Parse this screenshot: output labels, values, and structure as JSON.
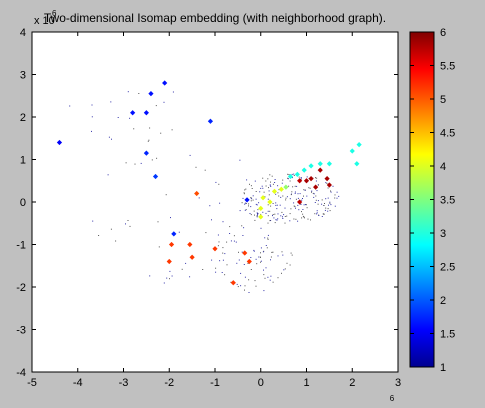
{
  "window": {
    "background": "#c0c0c0"
  },
  "chart_data": {
    "type": "scatter",
    "title": "Two-dimensional Isomap embedding (with neighborhood graph).",
    "x_multiplier_label": "6",
    "y_multiplier_label": "x 10",
    "y_multiplier_exp": "6",
    "xlim": [
      -5,
      3
    ],
    "ylim": [
      -4,
      4
    ],
    "x_ticks": [
      "-5",
      "-4",
      "-3",
      "-2",
      "-1",
      "0",
      "1",
      "2",
      "3"
    ],
    "y_ticks": [
      "4",
      "3",
      "2",
      "1",
      "0",
      "-1",
      "-2",
      "-3",
      "-4"
    ],
    "grid": false,
    "colormap": "jet",
    "colorbar": {
      "range": [
        1,
        6
      ],
      "tick_labels": [
        "6",
        "5.5",
        "5",
        "4.5",
        "4",
        "3.5",
        "3",
        "2.5",
        "2",
        "1.5",
        "1"
      ]
    },
    "highlighted_points": [
      {
        "x": -4.4,
        "y": 1.4,
        "c": 1.6
      },
      {
        "x": -2.8,
        "y": 2.1,
        "c": 1.7
      },
      {
        "x": -2.5,
        "y": 2.1,
        "c": 1.7
      },
      {
        "x": -2.4,
        "y": 2.55,
        "c": 1.7
      },
      {
        "x": -2.1,
        "y": 2.8,
        "c": 1.7
      },
      {
        "x": -2.5,
        "y": 1.15,
        "c": 1.8
      },
      {
        "x": -2.3,
        "y": 0.6,
        "c": 1.9
      },
      {
        "x": -1.1,
        "y": 1.9,
        "c": 1.8
      },
      {
        "x": -0.3,
        "y": 0.05,
        "c": 1.7
      },
      {
        "x": -1.9,
        "y": -0.75,
        "c": 1.8
      },
      {
        "x": -1.4,
        "y": 0.2,
        "c": 5.0
      },
      {
        "x": -1.95,
        "y": -1.0,
        "c": 5.1
      },
      {
        "x": -1.55,
        "y": -1.0,
        "c": 5.1
      },
      {
        "x": -2.0,
        "y": -1.4,
        "c": 5.1
      },
      {
        "x": -1.5,
        "y": -1.3,
        "c": 5.1
      },
      {
        "x": -1.0,
        "y": -1.1,
        "c": 5.1
      },
      {
        "x": -0.35,
        "y": -1.2,
        "c": 5.1
      },
      {
        "x": -0.25,
        "y": -1.4,
        "c": 5.1
      },
      {
        "x": -0.6,
        "y": -1.9,
        "c": 5.1
      },
      {
        "x": 0.0,
        "y": -0.35,
        "c": 4.0
      },
      {
        "x": 0.0,
        "y": -0.15,
        "c": 4.0
      },
      {
        "x": 0.05,
        "y": 0.1,
        "c": 4.0
      },
      {
        "x": 0.2,
        "y": 0.0,
        "c": 4.0
      },
      {
        "x": 0.3,
        "y": 0.25,
        "c": 4.0
      },
      {
        "x": 0.45,
        "y": 0.3,
        "c": 4.0
      },
      {
        "x": 0.55,
        "y": 0.35,
        "c": 3.6
      },
      {
        "x": 0.65,
        "y": 0.6,
        "c": 3.0
      },
      {
        "x": 0.8,
        "y": 0.65,
        "c": 3.0
      },
      {
        "x": 0.95,
        "y": 0.75,
        "c": 3.0
      },
      {
        "x": 1.1,
        "y": 0.85,
        "c": 3.0
      },
      {
        "x": 1.3,
        "y": 0.9,
        "c": 3.0
      },
      {
        "x": 1.5,
        "y": 0.9,
        "c": 3.0
      },
      {
        "x": 2.0,
        "y": 1.2,
        "c": 3.0
      },
      {
        "x": 2.15,
        "y": 1.35,
        "c": 3.0
      },
      {
        "x": 2.1,
        "y": 0.9,
        "c": 3.0
      },
      {
        "x": 0.85,
        "y": 0.0,
        "c": 5.7
      },
      {
        "x": 0.85,
        "y": 0.5,
        "c": 5.7
      },
      {
        "x": 1.0,
        "y": 0.5,
        "c": 5.8
      },
      {
        "x": 1.1,
        "y": 0.55,
        "c": 5.8
      },
      {
        "x": 1.2,
        "y": 0.35,
        "c": 5.8
      },
      {
        "x": 1.3,
        "y": 0.75,
        "c": 5.8
      },
      {
        "x": 1.45,
        "y": 0.55,
        "c": 5.8
      },
      {
        "x": 1.5,
        "y": 0.4,
        "c": 5.8
      }
    ]
  }
}
